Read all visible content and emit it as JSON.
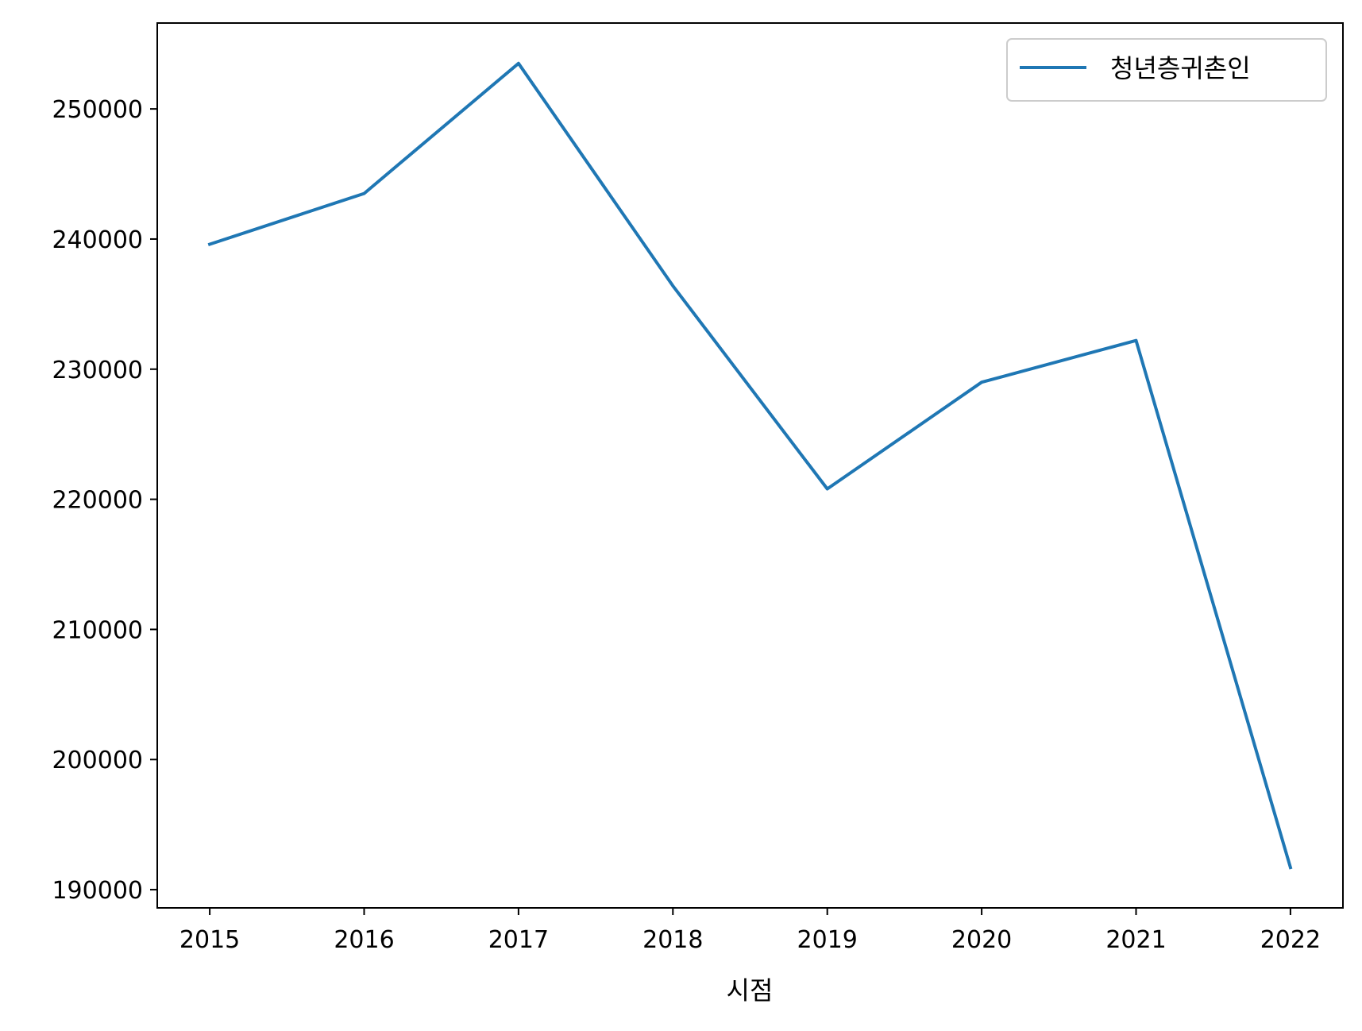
{
  "chart_data": {
    "type": "line",
    "title": "",
    "xlabel": "시점",
    "ylabel": "",
    "x": [
      "2015",
      "2016",
      "2017",
      "2018",
      "2019",
      "2020",
      "2021",
      "2022"
    ],
    "series": [
      {
        "name": "청년층귀촌인",
        "values": [
          239600,
          243500,
          253500,
          236400,
          220800,
          229000,
          232200,
          191700
        ],
        "color": "#1f77b4"
      }
    ],
    "xlim": [
      2014.66,
      2022.34
    ],
    "ylim": [
      188600,
      256600
    ],
    "yticks": [
      190000,
      200000,
      210000,
      220000,
      230000,
      240000,
      250000
    ],
    "ytick_labels": [
      "190000",
      "200000",
      "210000",
      "220000",
      "230000",
      "240000",
      "250000"
    ],
    "grid": false,
    "legend": "top-right"
  }
}
